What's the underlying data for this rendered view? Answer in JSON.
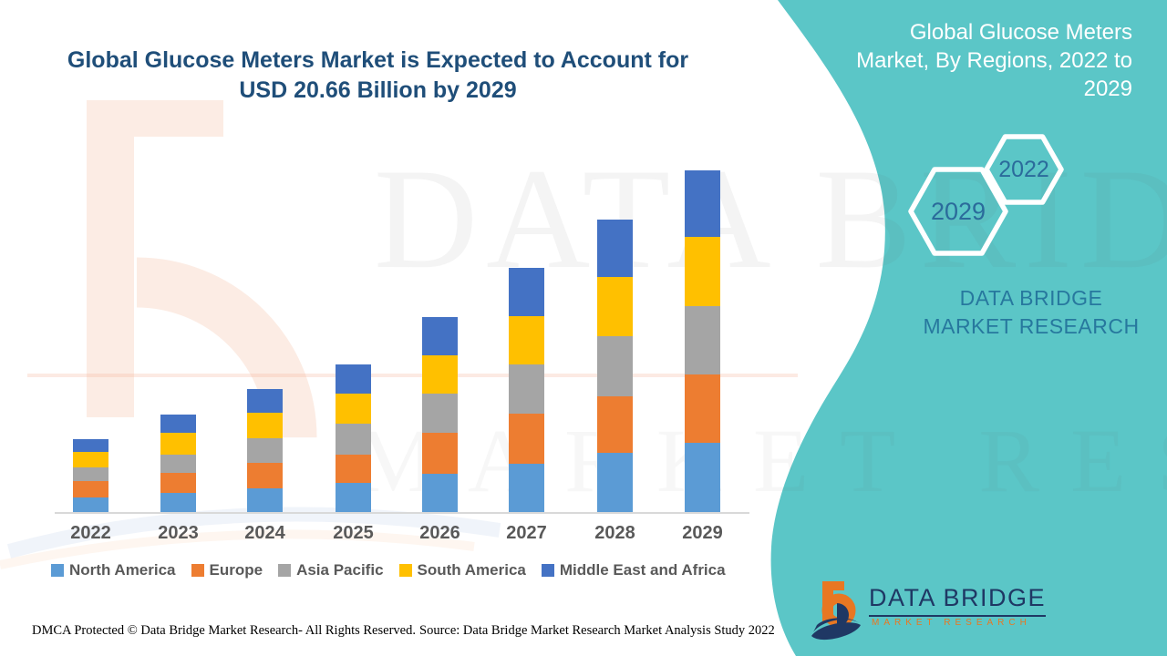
{
  "colors": {
    "teal_panel": "#5BC6C7",
    "title_navy": "#1F4E79",
    "label_gray": "#595959",
    "axis_gray": "#D9D9D9",
    "hexagon_year_blue": "#2B6B9B",
    "caption_blue": "#27789E",
    "logo_navy": "#1F3864",
    "logo_orange": "#E87722"
  },
  "header": {
    "title": "Global Glucose Meters Market is Expected to Account for USD 20.66 Billion by 2029"
  },
  "right_panel": {
    "title": "Global Glucose Meters Market, By Regions, 2022 to 2029",
    "year_badge_front": "2029",
    "year_badge_back": "2022",
    "caption": "DATA BRIDGE MARKET RESEARCH"
  },
  "watermarks": {
    "primary": "DATA BRIDGE",
    "secondary": "MARKET RESEARCH"
  },
  "logo": {
    "wordmark": "DATA BRIDGE",
    "subtitle": "MARKET RESEARCH"
  },
  "footer": {
    "dmca": "DMCA Protected © Data Bridge Market Research- All Rights Reserved.",
    "source": "Source: Data Bridge Market Research Market Analysis Study 2022"
  },
  "chart_data": {
    "type": "bar",
    "stacked": true,
    "title": "Global Glucose Meters Market is Expected to Account for USD 20.66 Billion by 2029",
    "xlabel": "",
    "ylabel": "",
    "unit": "USD Billion",
    "categories": [
      "2022",
      "2023",
      "2024",
      "2025",
      "2026",
      "2027",
      "2028",
      "2029"
    ],
    "series": [
      {
        "name": "North America",
        "color": "#5B9BD5",
        "values": [
          0.88,
          1.16,
          1.43,
          1.76,
          2.31,
          2.92,
          3.58,
          4.19
        ]
      },
      {
        "name": "Europe",
        "color": "#ED7D31",
        "values": [
          0.99,
          1.21,
          1.54,
          1.71,
          2.48,
          3.03,
          3.42,
          4.13
        ]
      },
      {
        "name": "Asia Pacific",
        "color": "#A5A5A5",
        "values": [
          0.83,
          1.1,
          1.49,
          1.87,
          2.37,
          2.98,
          3.64,
          4.13
        ]
      },
      {
        "name": "South America",
        "color": "#FFC000",
        "values": [
          0.94,
          1.32,
          1.54,
          1.82,
          2.31,
          2.92,
          3.58,
          4.19
        ]
      },
      {
        "name": "Middle East and Africa",
        "color": "#4472C4",
        "values": [
          0.77,
          1.1,
          1.43,
          1.76,
          2.31,
          2.92,
          3.47,
          4.02
        ]
      }
    ],
    "totals": [
      4.41,
      5.89,
      7.43,
      8.92,
      11.78,
      14.77,
      17.69,
      20.66
    ],
    "ylim": [
      0,
      21.6
    ],
    "grid": false,
    "legend_position": "bottom"
  }
}
